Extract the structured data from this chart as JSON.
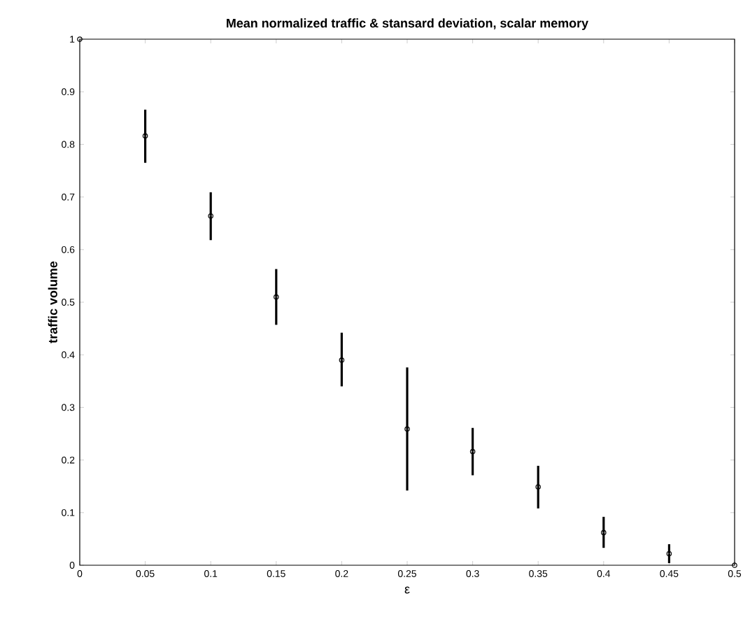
{
  "chart_data": {
    "type": "scatter",
    "title": "Mean normalized traffic & stansard deviation, scalar memory",
    "xlabel": "ε",
    "ylabel": "traffic volume",
    "x": [
      0,
      0.05,
      0.1,
      0.15,
      0.2,
      0.25,
      0.3,
      0.35,
      0.4,
      0.45,
      0.5
    ],
    "values": [
      1,
      0.816,
      0.664,
      0.51,
      0.39,
      0.259,
      0.216,
      0.149,
      0.062,
      0.022,
      0
    ],
    "errors": [
      null,
      [
        0.765,
        0.866
      ],
      [
        0.618,
        0.709
      ],
      [
        0.457,
        0.563
      ],
      [
        0.34,
        0.442
      ],
      [
        0.142,
        0.376
      ],
      [
        0.171,
        0.261
      ],
      [
        0.108,
        0.189
      ],
      [
        0.033,
        0.092
      ],
      [
        0.004,
        0.04
      ],
      null
    ],
    "color": "#000000",
    "marker": "circle",
    "xlim": [
      0,
      0.5
    ],
    "ylim": [
      0,
      1
    ],
    "xticks": [
      0,
      0.05,
      0.1,
      0.15,
      0.2,
      0.25,
      0.3,
      0.35,
      0.4,
      0.45,
      0.5
    ],
    "yticks": [
      0,
      0.1,
      0.2,
      0.3,
      0.4,
      0.5,
      0.6,
      0.7,
      0.8,
      0.9,
      1
    ],
    "grid": false
  }
}
